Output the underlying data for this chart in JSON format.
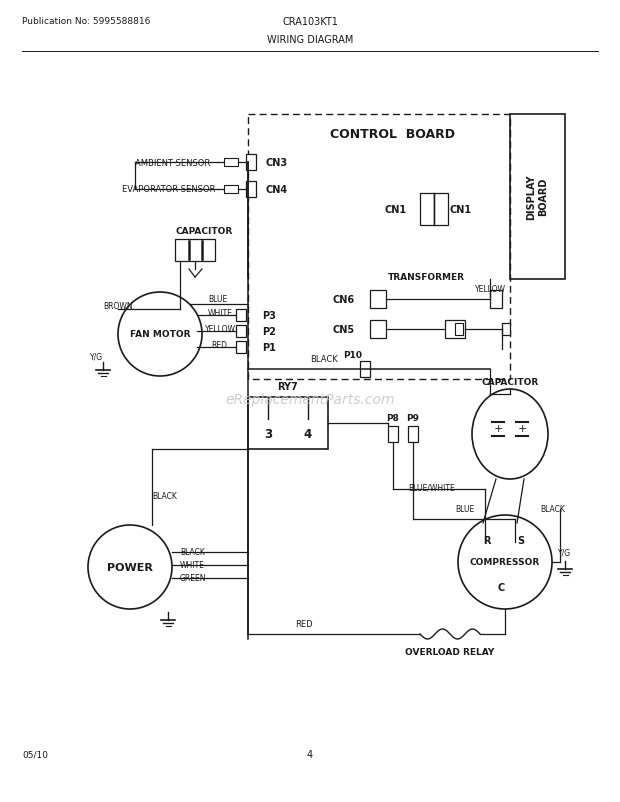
{
  "title_pub": "Publication No: 5995588816",
  "title_model": "CRA103KT1",
  "title_diagram": "WIRING DIAGRAM",
  "footer_date": "05/10",
  "footer_page": "4",
  "bg_color": "#ffffff",
  "line_color": "#1a1a1a",
  "watermark": "eReplacementParts.com"
}
